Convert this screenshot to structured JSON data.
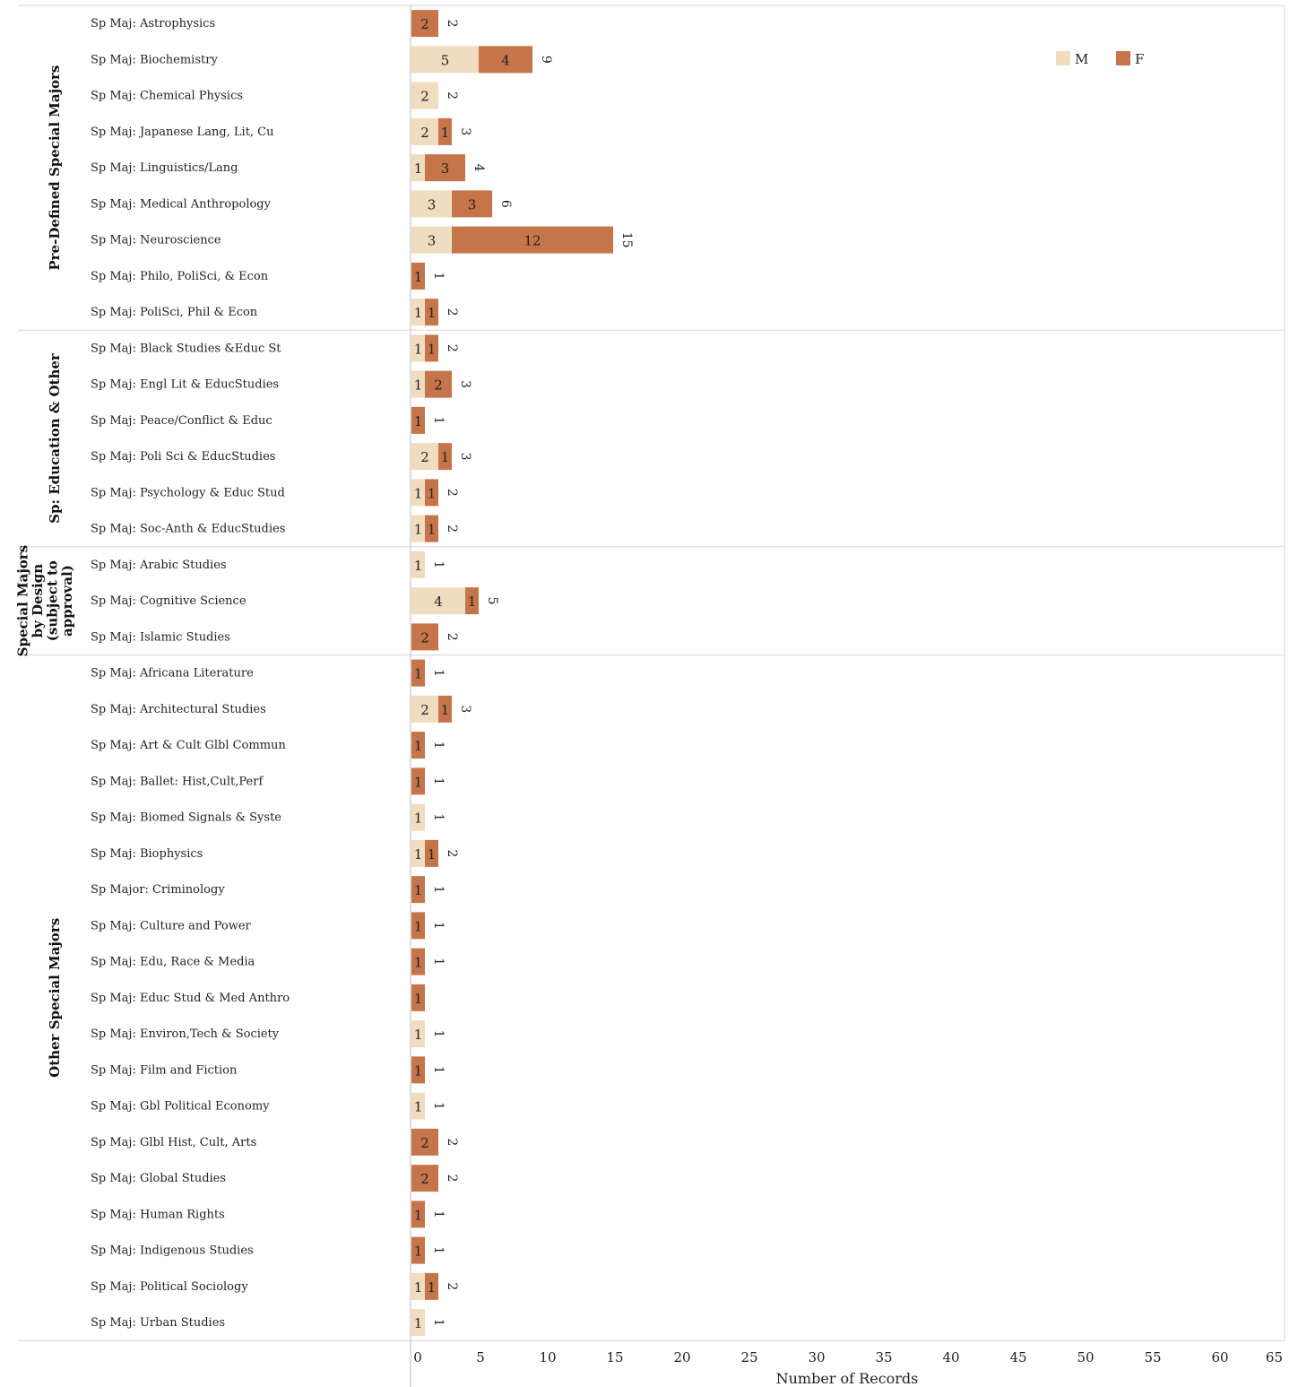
{
  "chart_data": {
    "type": "bar",
    "orientation": "horizontal",
    "stacked": true,
    "xlabel": "Number of Records",
    "xlim": [
      0,
      65
    ],
    "xticks": [
      0,
      5,
      10,
      15,
      20,
      25,
      30,
      35,
      40,
      45,
      50,
      55,
      60,
      65
    ],
    "colors": {
      "M": "#f0dcbf",
      "F": "#c6744a"
    },
    "legend": {
      "position": "top-right",
      "entries": [
        "M",
        "F"
      ]
    },
    "groups": [
      {
        "name": "Pre-Defined Special Majors",
        "rows": [
          {
            "label": "Sp Maj: Astrophysics",
            "M": 0,
            "F": 2,
            "total": "2"
          },
          {
            "label": "Sp Maj: Biochemistry",
            "M": 5,
            "F": 4,
            "total": "9"
          },
          {
            "label": "Sp Maj: Chemical Physics",
            "M": 2,
            "F": 0,
            "total": "2"
          },
          {
            "label": "Sp Maj: Japanese Lang, Lit, Cu",
            "M": 2,
            "F": 1,
            "total": "3"
          },
          {
            "label": "Sp Maj: Linguistics/Lang",
            "M": 1,
            "F": 3,
            "total": "4"
          },
          {
            "label": "Sp Maj: Medical Anthropology",
            "M": 3,
            "F": 3,
            "total": "6"
          },
          {
            "label": "Sp Maj: Neuroscience",
            "M": 3,
            "F": 12,
            "total": "15"
          },
          {
            "label": "Sp Maj: Philo, PoliSci, & Econ",
            "M": 0,
            "F": 1,
            "total": "1"
          },
          {
            "label": "Sp Maj: PoliSci, Phil & Econ",
            "M": 1,
            "F": 1,
            "total": "2"
          }
        ]
      },
      {
        "name": "Sp: Education & Other",
        "rows": [
          {
            "label": "Sp Maj: Black Studies &Educ St",
            "M": 1,
            "F": 1,
            "total": "2"
          },
          {
            "label": "Sp Maj: Engl Lit & EducStudies",
            "M": 1,
            "F": 2,
            "total": "3"
          },
          {
            "label": "Sp Maj: Peace/Conflict & Educ",
            "M": 0,
            "F": 1,
            "total": "1"
          },
          {
            "label": "Sp Maj: Poli Sci & EducStudies",
            "M": 2,
            "F": 1,
            "total": "3"
          },
          {
            "label": "Sp Maj: Psychology & Educ Stud",
            "M": 1,
            "F": 1,
            "total": "2"
          },
          {
            "label": "Sp Maj: Soc-Anth & EducStudies",
            "M": 1,
            "F": 1,
            "total": "2"
          }
        ]
      },
      {
        "name": "Special Majors by Design (subject to approval)",
        "name_lines": [
          "Special Majors",
          "by Design",
          "(subject to",
          "approval)"
        ],
        "rows": [
          {
            "label": "Sp Maj: Arabic Studies",
            "M": 1,
            "F": 0,
            "total": "1"
          },
          {
            "label": "Sp Maj: Cognitive Science",
            "M": 4,
            "F": 1,
            "total": "5"
          },
          {
            "label": "Sp Maj: Islamic Studies",
            "M": 0,
            "F": 2,
            "total": "2"
          }
        ]
      },
      {
        "name": "Other Special Majors",
        "rows": [
          {
            "label": "Sp Maj: Africana Literature",
            "M": 0,
            "F": 1,
            "total": "1"
          },
          {
            "label": "Sp Maj: Architectural Studies",
            "M": 2,
            "F": 1,
            "total": "3"
          },
          {
            "label": "Sp Maj: Art & Cult Glbl Commun",
            "M": 0,
            "F": 1,
            "total": "1"
          },
          {
            "label": "Sp Maj: Ballet: Hist,Cult,Perf",
            "M": 0,
            "F": 1,
            "total": "1"
          },
          {
            "label": "Sp Maj: Biomed Signals & Syste",
            "M": 1,
            "F": 0,
            "total": "1"
          },
          {
            "label": "Sp Maj: Biophysics",
            "M": 1,
            "F": 1,
            "total": "2"
          },
          {
            "label": "Sp Major: Criminology",
            "M": 0,
            "F": 1,
            "total": "1"
          },
          {
            "label": "Sp Maj: Culture and Power",
            "M": 0,
            "F": 1,
            "total": "1"
          },
          {
            "label": "Sp Maj: Edu, Race & Media",
            "M": 0,
            "F": 1,
            "total": "1"
          },
          {
            "label": "Sp Maj: Educ Stud & Med Anthro",
            "M": 0,
            "F": 1,
            "total": ""
          },
          {
            "label": "Sp Maj: Environ,Tech & Society",
            "M": 1,
            "F": 0,
            "total": "1"
          },
          {
            "label": "Sp Maj: Film and Fiction",
            "M": 0,
            "F": 1,
            "total": "1"
          },
          {
            "label": "Sp Maj: Gbl Political Economy",
            "M": 1,
            "F": 0,
            "total": "1"
          },
          {
            "label": "Sp Maj: Glbl Hist, Cult, Arts",
            "M": 0,
            "F": 2,
            "total": "2"
          },
          {
            "label": "Sp Maj: Global Studies",
            "M": 0,
            "F": 2,
            "total": "2"
          },
          {
            "label": "Sp Maj: Human Rights",
            "M": 0,
            "F": 1,
            "total": "1"
          },
          {
            "label": "Sp Maj: Indigenous Studies",
            "M": 0,
            "F": 1,
            "total": "1"
          },
          {
            "label": "Sp Maj: Political Sociology",
            "M": 1,
            "F": 1,
            "total": "2"
          },
          {
            "label": "Sp Maj: Urban Studies",
            "M": 1,
            "F": 0,
            "total": "1"
          }
        ]
      }
    ]
  }
}
